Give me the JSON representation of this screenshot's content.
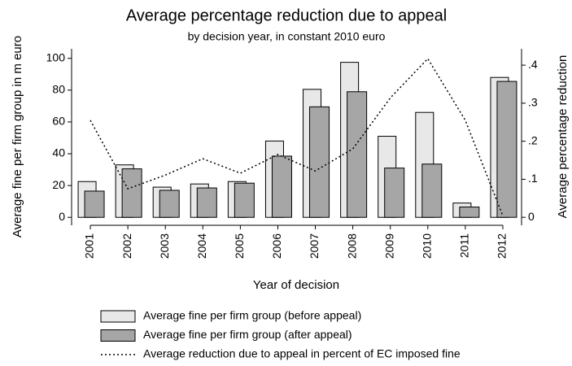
{
  "chart_data": {
    "type": "bar",
    "title": "Average percentage reduction due to appeal",
    "subtitle": "by decision year, in constant 2010 euro",
    "x_label": "Year of decision",
    "y_label": "Average fine per firm group in m euro",
    "y2_label": "Average percentage reduction",
    "categories": [
      "2001",
      "2002",
      "2003",
      "2004",
      "2005",
      "2006",
      "2007",
      "2008",
      "2009",
      "2010",
      "2011",
      "2012"
    ],
    "series": [
      {
        "name": "Average fine per firm group (before appeal)",
        "color": "#e8e8e8",
        "values": [
          22.5,
          33,
          19,
          21,
          22.5,
          48,
          80.5,
          97.5,
          51,
          66,
          9,
          88
        ]
      },
      {
        "name": "Average fine per firm group (after appeal)",
        "color": "#a6a6a6",
        "values": [
          16.5,
          30.5,
          17,
          18.5,
          21.5,
          38.5,
          69.5,
          79,
          31,
          33.5,
          6.5,
          85.5
        ]
      },
      {
        "name": "Average reduction due to appeal in percent of EC imposed fine",
        "color": "#000000",
        "type": "line",
        "axis": "y2",
        "values": [
          0.255,
          0.075,
          0.111,
          0.154,
          0.116,
          0.165,
          0.122,
          0.18,
          0.314,
          0.417,
          0.255,
          0.004
        ]
      }
    ],
    "ylim": [
      -5,
      106
    ],
    "yticks": [
      0,
      20,
      40,
      60,
      80,
      100
    ],
    "y2lim": [
      -0.021,
      0.443
    ],
    "y2ticks": [
      0,
      {
        "value": 0.1,
        "label": ".1"
      },
      {
        "value": 0.2,
        "label": ".2"
      },
      {
        "value": 0.3,
        "label": ".3"
      },
      {
        "value": 0.4,
        "label": ".4"
      }
    ],
    "grid": false
  }
}
